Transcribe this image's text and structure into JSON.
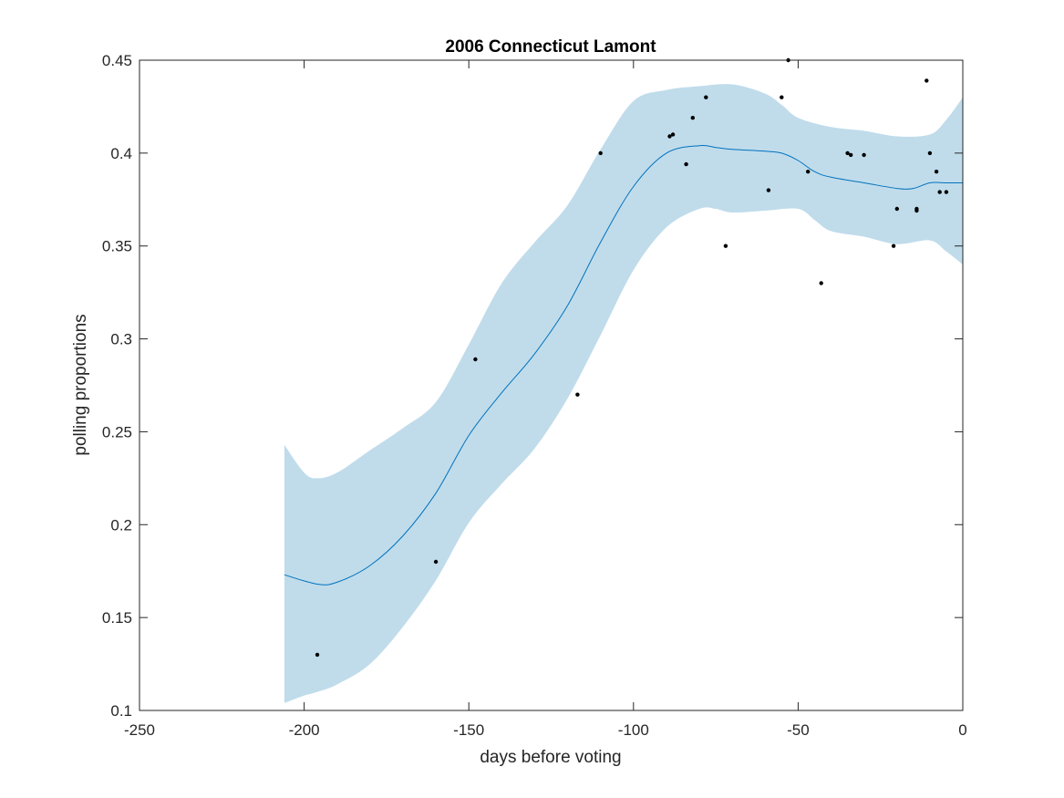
{
  "chart_data": {
    "type": "scatter",
    "title": "2006 Connecticut Lamont",
    "xlabel": "days before voting",
    "ylabel": "polling proportions",
    "xlim": [
      -250,
      0
    ],
    "ylim": [
      0.1,
      0.45
    ],
    "xticks": [
      -250,
      -200,
      -150,
      -100,
      -50,
      0
    ],
    "xtick_labels": [
      "-250",
      "-200",
      "-150",
      "-100",
      "-50",
      "0"
    ],
    "yticks": [
      0.1,
      0.15,
      0.2,
      0.25,
      0.3,
      0.35,
      0.4,
      0.45
    ],
    "ytick_labels": [
      "0.1",
      "0.15",
      "0.2",
      "0.25",
      "0.3",
      "0.35",
      "0.4",
      "0.45"
    ],
    "grid": false,
    "colors": {
      "band": "#c0dceb",
      "line": "#0072bd",
      "points": "#000000",
      "axes": "#262626"
    },
    "points": [
      {
        "x": -196,
        "y": 0.13
      },
      {
        "x": -160,
        "y": 0.18
      },
      {
        "x": -148,
        "y": 0.289
      },
      {
        "x": -117,
        "y": 0.27
      },
      {
        "x": -110,
        "y": 0.4
      },
      {
        "x": -89,
        "y": 0.409
      },
      {
        "x": -88,
        "y": 0.41
      },
      {
        "x": -84,
        "y": 0.394
      },
      {
        "x": -82,
        "y": 0.419
      },
      {
        "x": -78,
        "y": 0.43
      },
      {
        "x": -72,
        "y": 0.35
      },
      {
        "x": -59,
        "y": 0.38
      },
      {
        "x": -55,
        "y": 0.43
      },
      {
        "x": -53,
        "y": 0.45
      },
      {
        "x": -47,
        "y": 0.39
      },
      {
        "x": -43,
        "y": 0.33
      },
      {
        "x": -35,
        "y": 0.4
      },
      {
        "x": -34,
        "y": 0.399
      },
      {
        "x": -30,
        "y": 0.399
      },
      {
        "x": -21,
        "y": 0.35
      },
      {
        "x": -20,
        "y": 0.37
      },
      {
        "x": -14,
        "y": 0.37
      },
      {
        "x": -14,
        "y": 0.369
      },
      {
        "x": -11,
        "y": 0.439
      },
      {
        "x": -10,
        "y": 0.4
      },
      {
        "x": -8,
        "y": 0.39
      },
      {
        "x": -7,
        "y": 0.379
      },
      {
        "x": -5,
        "y": 0.379
      }
    ],
    "fit_line": {
      "x": [
        -206,
        -196,
        -190,
        -180,
        -170,
        -160,
        -150,
        -140,
        -130,
        -120,
        -110,
        -100,
        -90,
        -80,
        -75,
        -70,
        -60,
        -55,
        -50,
        -45,
        -40,
        -30,
        -20,
        -15,
        -10,
        -5,
        0
      ],
      "y": [
        0.173,
        0.168,
        0.169,
        0.178,
        0.194,
        0.217,
        0.248,
        0.271,
        0.292,
        0.318,
        0.352,
        0.382,
        0.4,
        0.404,
        0.403,
        0.402,
        0.401,
        0.4,
        0.396,
        0.39,
        0.387,
        0.384,
        0.381,
        0.381,
        0.384,
        0.384,
        0.384
      ]
    },
    "band_upper": {
      "x": [
        -206,
        -200,
        -196,
        -190,
        -180,
        -170,
        -160,
        -150,
        -140,
        -130,
        -120,
        -110,
        -100,
        -90,
        -80,
        -70,
        -60,
        -55,
        -50,
        -40,
        -30,
        -20,
        -10,
        -5,
        0
      ],
      "y": [
        0.243,
        0.228,
        0.225,
        0.228,
        0.24,
        0.252,
        0.266,
        0.297,
        0.33,
        0.352,
        0.372,
        0.402,
        0.428,
        0.434,
        0.436,
        0.437,
        0.432,
        0.426,
        0.419,
        0.414,
        0.412,
        0.409,
        0.41,
        0.418,
        0.43
      ]
    },
    "band_lower": {
      "x": [
        -206,
        -200,
        -196,
        -190,
        -180,
        -170,
        -160,
        -150,
        -140,
        -130,
        -120,
        -110,
        -100,
        -90,
        -80,
        -75,
        -70,
        -60,
        -50,
        -45,
        -40,
        -30,
        -20,
        -10,
        -5,
        0
      ],
      "y": [
        0.104,
        0.108,
        0.11,
        0.114,
        0.125,
        0.145,
        0.17,
        0.201,
        0.222,
        0.241,
        0.268,
        0.302,
        0.337,
        0.36,
        0.37,
        0.37,
        0.368,
        0.369,
        0.37,
        0.364,
        0.358,
        0.355,
        0.351,
        0.353,
        0.347,
        0.34
      ]
    }
  }
}
